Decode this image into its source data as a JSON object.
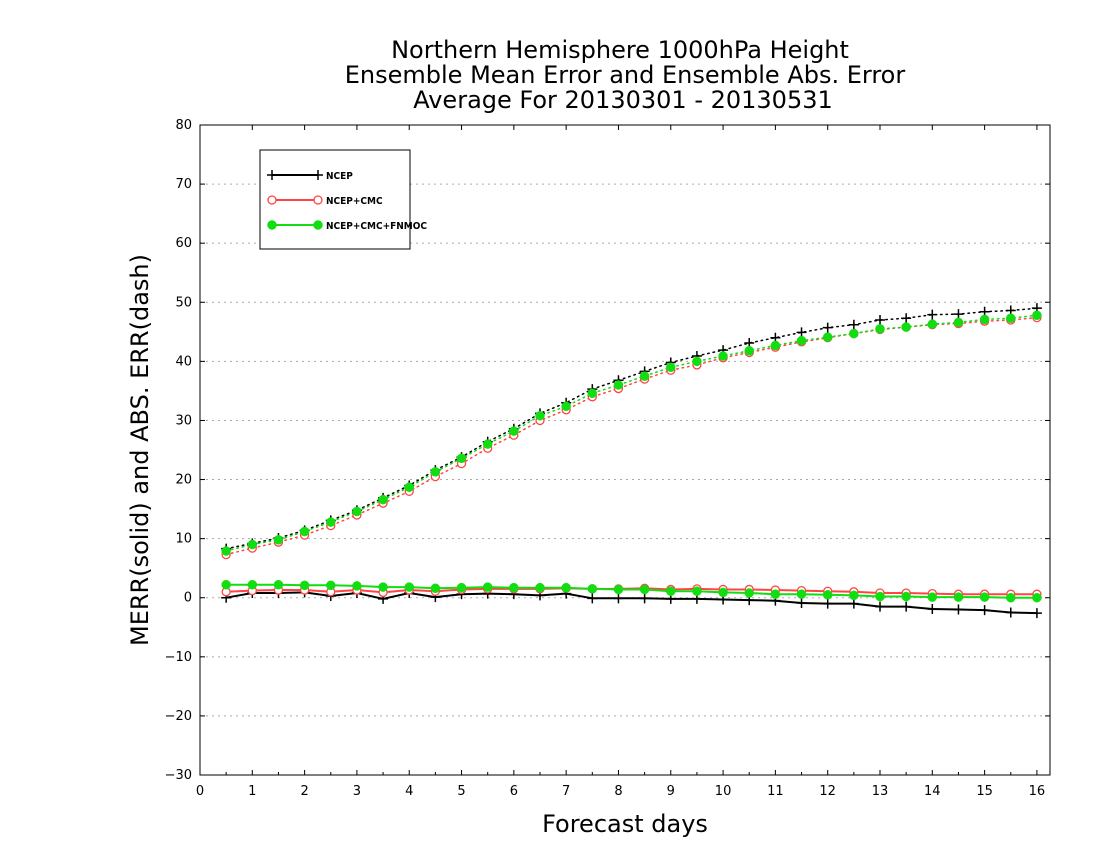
{
  "chart_data": {
    "type": "line",
    "title": [
      "Northern Hemisphere 1000hPa Height",
      "Ensemble Mean Error and Ensemble Abs. Error",
      "Average For 20130301 - 20130531"
    ],
    "xlabel": "Forecast days",
    "ylabel": "MERR(solid) and ABS. ERR(dash)",
    "xlim": [
      0,
      16.25
    ],
    "ylim": [
      -30,
      80
    ],
    "xticks": [
      "0",
      "1",
      "2",
      "3",
      "4",
      "5",
      "6",
      "7",
      "8",
      "9",
      "10",
      "11",
      "12",
      "13",
      "14",
      "15",
      "16"
    ],
    "yticks": [
      "80",
      "70",
      "60",
      "50",
      "40",
      "30",
      "20",
      "10",
      "0",
      "−10",
      "−20",
      "−30"
    ],
    "ytick_values": [
      80,
      70,
      60,
      50,
      40,
      30,
      20,
      10,
      0,
      -10,
      -20,
      -30
    ],
    "grid": "horizontal dotted",
    "legend_position": "top-left",
    "x": [
      0.5,
      1,
      1.5,
      2,
      2.5,
      3,
      3.5,
      4,
      4.5,
      5,
      5.5,
      6,
      6.5,
      7,
      7.5,
      8,
      8.5,
      9,
      9.5,
      10,
      10.5,
      11,
      11.5,
      12,
      12.5,
      13,
      13.5,
      14,
      14.5,
      15,
      15.5,
      16
    ],
    "series": [
      {
        "name": "NCEP",
        "color": "#000000",
        "marker": "plus",
        "merr": [
          0.0,
          0.8,
          0.8,
          0.9,
          0.3,
          0.8,
          -0.2,
          0.8,
          0.1,
          0.6,
          0.7,
          0.6,
          0.4,
          0.7,
          -0.1,
          -0.1,
          -0.1,
          -0.2,
          -0.2,
          -0.3,
          -0.4,
          -0.5,
          -0.9,
          -1.0,
          -1.0,
          -1.5,
          -1.5,
          -1.9,
          -2.0,
          -2.1,
          -2.5,
          -2.6
        ],
        "abs_err": [
          8.3,
          9.2,
          10.1,
          11.4,
          13.1,
          14.8,
          16.9,
          19.0,
          21.6,
          23.8,
          26.4,
          28.6,
          31.2,
          33.0,
          35.3,
          36.8,
          38.3,
          39.8,
          40.9,
          41.9,
          43.1,
          44.0,
          44.9,
          45.7,
          46.2,
          47.0,
          47.3,
          47.9,
          48.0,
          48.4,
          48.6,
          49.0
        ]
      },
      {
        "name": "NCEP+CMC",
        "color": "#ff4444",
        "marker": "open-circle",
        "merr": [
          1.0,
          1.2,
          1.3,
          1.3,
          1.0,
          1.3,
          0.9,
          1.3,
          1.1,
          1.4,
          1.5,
          1.5,
          1.5,
          1.6,
          1.5,
          1.5,
          1.6,
          1.4,
          1.5,
          1.4,
          1.4,
          1.3,
          1.2,
          1.1,
          1.0,
          0.8,
          0.8,
          0.7,
          0.6,
          0.6,
          0.6,
          0.6
        ],
        "abs_err": [
          7.3,
          8.4,
          9.4,
          10.6,
          12.2,
          14.0,
          16.0,
          18.0,
          20.5,
          22.7,
          25.3,
          27.5,
          30.0,
          31.8,
          34.0,
          35.4,
          37.0,
          38.5,
          39.4,
          40.6,
          41.5,
          42.4,
          43.3,
          44.0,
          44.7,
          45.4,
          45.8,
          46.2,
          46.4,
          46.8,
          47.0,
          47.4
        ]
      },
      {
        "name": "NCEP+CMC+FNMOC",
        "color": "#11dd11",
        "marker": "filled-circle",
        "merr": [
          2.2,
          2.2,
          2.2,
          2.1,
          2.1,
          2.0,
          1.8,
          1.8,
          1.6,
          1.7,
          1.8,
          1.7,
          1.7,
          1.7,
          1.5,
          1.4,
          1.4,
          1.1,
          1.1,
          0.9,
          0.8,
          0.6,
          0.6,
          0.5,
          0.4,
          0.2,
          0.2,
          0.1,
          0.1,
          0.1,
          0.0,
          0.0
        ],
        "abs_err": [
          7.9,
          9.0,
          9.8,
          11.2,
          12.8,
          14.6,
          16.6,
          18.7,
          21.3,
          23.6,
          26.0,
          28.2,
          30.8,
          32.4,
          34.6,
          36.0,
          37.5,
          39.0,
          40.0,
          40.9,
          41.8,
          42.7,
          43.5,
          44.1,
          44.7,
          45.5,
          45.8,
          46.3,
          46.6,
          47.1,
          47.3,
          47.8
        ]
      }
    ]
  }
}
